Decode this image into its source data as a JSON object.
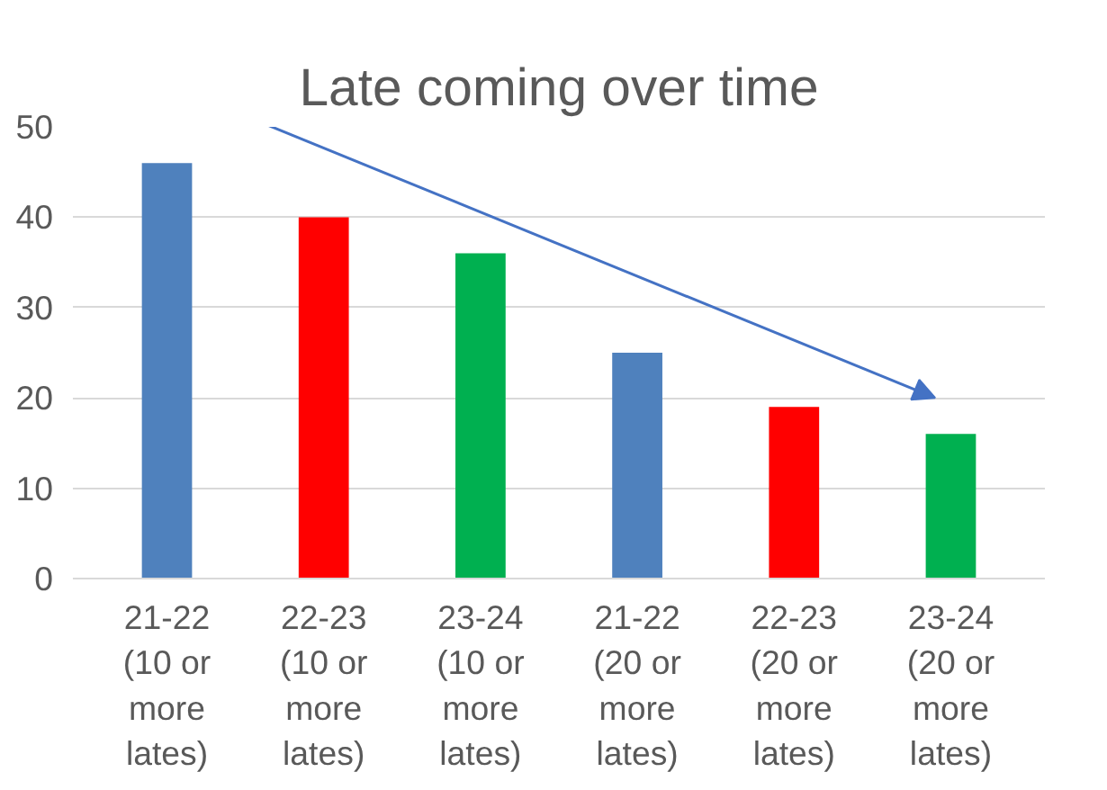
{
  "chart_data": {
    "type": "bar",
    "title": "Late coming over time",
    "categories": [
      "21-22 (10 or more lates)",
      "22-23 (10 or more lates)",
      "23-24 (10 or more lates)",
      "21-22 (20 or more lates)",
      "22-23 (20 or more lates)",
      "23-24 (20 or more lates)"
    ],
    "values": [
      46,
      40,
      36,
      25,
      19,
      16
    ],
    "colors": [
      "#4f81bd",
      "#ff0000",
      "#00b050",
      "#4f81bd",
      "#ff0000",
      "#00b050"
    ],
    "ylim": [
      0,
      50
    ],
    "yticks": [
      0,
      10,
      20,
      30,
      40,
      50
    ],
    "grid": "y"
  }
}
